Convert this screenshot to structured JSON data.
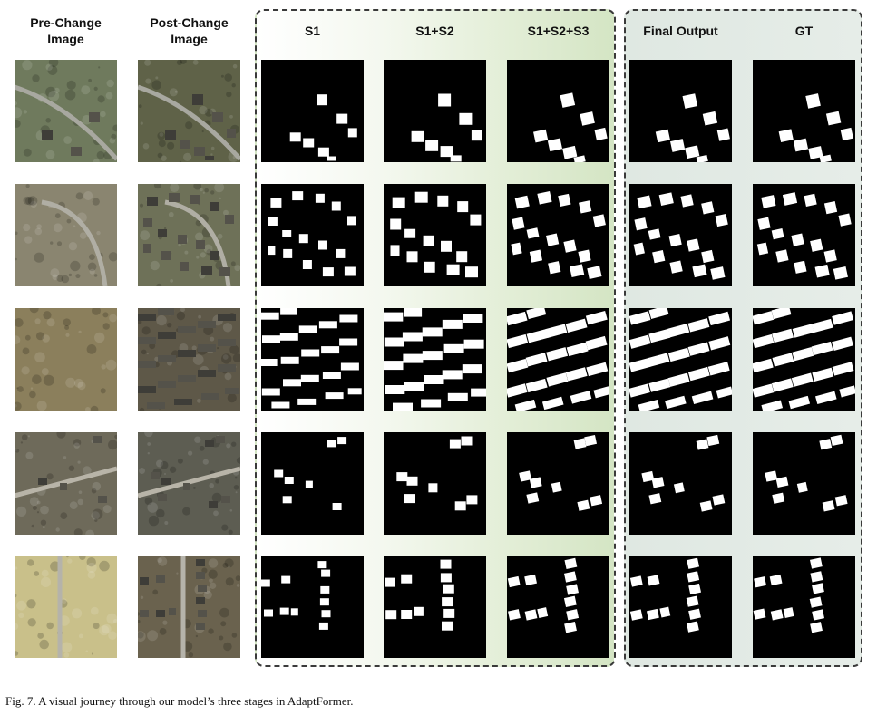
{
  "headers": {
    "pre": "Pre-Change\nImage",
    "post": "Post-Change\nImage",
    "s1": "S1",
    "s12": "S1+S2",
    "s123": "S1+S2+S3",
    "final": "Final Output",
    "gt": "GT"
  },
  "caption": "Fig. 7.  A visual journey through our model’s three stages in AdaptFormer.",
  "colors": {
    "mask_bg": "#000000",
    "mask_fg": "#ffffff",
    "stage_panel_tint": "#d4e5c4",
    "final_panel_tint": "#dfe8e2"
  },
  "rows": [
    {
      "scene": "curved-road-grass",
      "pre": "#6f7a5d",
      "post": "#5f6248",
      "road": "#a8a8a0"
    },
    {
      "scene": "cul-de-sac-dry",
      "pre": "#8a8570",
      "post": "#6e7158",
      "road": "#b0aea4"
    },
    {
      "scene": "bare-field",
      "pre": "#8b7f5c",
      "post": "#5e5848",
      "road": "#9c9688"
    },
    {
      "scene": "construction-site",
      "pre": "#6e6a5a",
      "post": "#5d5d52",
      "road": "#b8b4a8"
    },
    {
      "scene": "light-field-roads",
      "pre": "#c9c08a",
      "post": "#6a624e",
      "road": "#b5b3aa"
    }
  ]
}
